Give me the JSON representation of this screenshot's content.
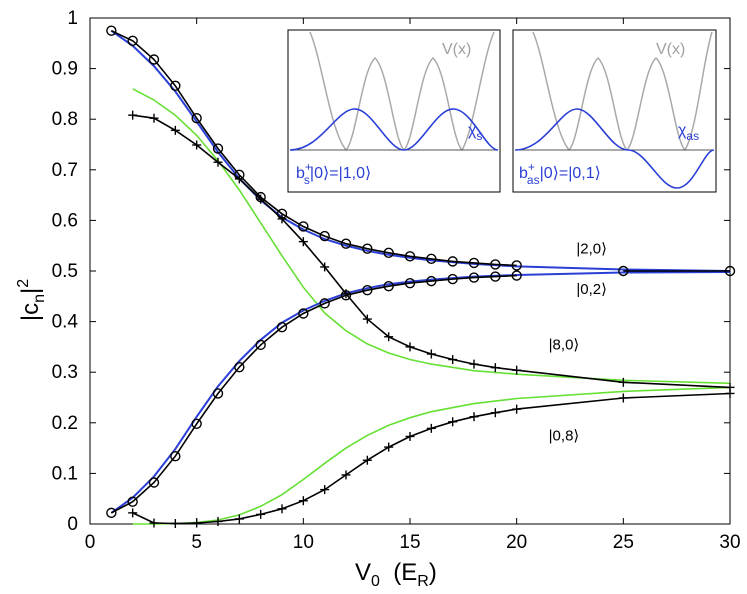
{
  "chart_data": {
    "type": "line",
    "xlabel": {
      "main": "V",
      "sub": "0",
      "units_open": "  (E",
      "units_sub": "R",
      "units_close": ")"
    },
    "ylabel": {
      "main": "|c",
      "sub": "n",
      "close": "|",
      "sup": "2"
    },
    "xlim": [
      0,
      30
    ],
    "ylim": [
      0,
      1
    ],
    "xticks": [
      "0",
      "5",
      "10",
      "15",
      "20",
      "25",
      "30"
    ],
    "yticks": [
      "0",
      "0.1",
      "0.2",
      "0.3",
      "0.4",
      "0.5",
      "0.6",
      "0.7",
      "0.8",
      "0.9",
      "1"
    ],
    "grid": false,
    "colors": {
      "black": "#000000",
      "blue": "#2a3fd6",
      "green": "#66e033",
      "gray": "#a9a9a9"
    },
    "series": [
      {
        "style": "black-circles",
        "x": [
          1,
          2,
          3,
          4,
          5,
          6,
          7,
          8,
          9,
          10,
          11,
          12,
          13,
          14,
          15,
          16,
          17,
          18,
          19,
          20
        ],
        "y": [
          0.975,
          0.955,
          0.918,
          0.866,
          0.802,
          0.742,
          0.69,
          0.646,
          0.613,
          0.588,
          0.569,
          0.554,
          0.544,
          0.536,
          0.529,
          0.524,
          0.519,
          0.516,
          0.513,
          0.511
        ]
      },
      {
        "style": "black-circles",
        "x": [
          1,
          2,
          3,
          4,
          5,
          6,
          7,
          8,
          9,
          10,
          11,
          12,
          13,
          14,
          15,
          16,
          17,
          18,
          19,
          20
        ],
        "y": [
          0.022,
          0.044,
          0.082,
          0.134,
          0.198,
          0.258,
          0.31,
          0.354,
          0.389,
          0.416,
          0.436,
          0.452,
          0.462,
          0.47,
          0.476,
          0.48,
          0.484,
          0.487,
          0.489,
          0.491
        ]
      },
      {
        "style": "black-circles",
        "x": [
          25,
          30
        ],
        "y": [
          0.5,
          0.5
        ]
      },
      {
        "style": "black-plus",
        "x": [
          2,
          3,
          4,
          5,
          6,
          7,
          8,
          9,
          10,
          11,
          12,
          13,
          14,
          15,
          16,
          17,
          18,
          19,
          20,
          25,
          30
        ],
        "y": [
          0.808,
          0.802,
          0.778,
          0.749,
          0.715,
          0.682,
          0.642,
          0.603,
          0.558,
          0.508,
          0.455,
          0.405,
          0.37,
          0.35,
          0.336,
          0.325,
          0.316,
          0.309,
          0.304,
          0.28,
          0.27
        ]
      },
      {
        "style": "black-plus",
        "x": [
          2,
          3,
          4,
          5,
          6,
          7,
          8,
          9,
          10,
          11,
          12,
          13,
          14,
          15,
          16,
          17,
          18,
          19,
          20,
          25,
          30
        ],
        "y": [
          0.022,
          0.002,
          0.001,
          0.002,
          0.005,
          0.01,
          0.019,
          0.03,
          0.046,
          0.068,
          0.097,
          0.126,
          0.152,
          0.173,
          0.189,
          0.202,
          0.212,
          0.22,
          0.227,
          0.249,
          0.258
        ]
      },
      {
        "style": "blue-line",
        "x": [
          1,
          2,
          3,
          4,
          5,
          6,
          7,
          8,
          9,
          10,
          11,
          12,
          13,
          14,
          15,
          16,
          18,
          20,
          25,
          30
        ],
        "y": [
          0.975,
          0.945,
          0.905,
          0.855,
          0.795,
          0.735,
          0.683,
          0.64,
          0.606,
          0.582,
          0.563,
          0.55,
          0.54,
          0.532,
          0.526,
          0.521,
          0.514,
          0.509,
          0.503,
          0.5
        ]
      },
      {
        "style": "blue-line",
        "x": [
          1,
          2,
          3,
          4,
          5,
          6,
          7,
          8,
          9,
          10,
          11,
          12,
          13,
          14,
          15,
          16,
          18,
          20,
          25,
          30
        ],
        "y": [
          0.022,
          0.052,
          0.094,
          0.148,
          0.212,
          0.272,
          0.322,
          0.364,
          0.398,
          0.422,
          0.441,
          0.456,
          0.466,
          0.474,
          0.479,
          0.483,
          0.489,
          0.492,
          0.497,
          0.498
        ]
      },
      {
        "style": "green-line",
        "x": [
          2,
          3,
          4,
          5,
          6,
          7,
          8,
          9,
          10,
          11,
          12,
          13,
          14,
          15,
          16,
          18,
          20,
          25,
          30
        ],
        "y": [
          0.86,
          0.838,
          0.808,
          0.768,
          0.718,
          0.66,
          0.595,
          0.53,
          0.468,
          0.417,
          0.382,
          0.356,
          0.338,
          0.325,
          0.316,
          0.303,
          0.296,
          0.284,
          0.278
        ]
      },
      {
        "style": "green-line",
        "x": [
          2,
          3,
          4,
          5,
          6,
          7,
          8,
          9,
          10,
          11,
          12,
          13,
          14,
          15,
          16,
          18,
          20,
          25,
          30
        ],
        "y": [
          0.0,
          0.0,
          0.001,
          0.003,
          0.008,
          0.018,
          0.035,
          0.058,
          0.088,
          0.12,
          0.15,
          0.175,
          0.195,
          0.21,
          0.222,
          0.238,
          0.248,
          0.262,
          0.27
        ]
      }
    ],
    "annotations": [
      {
        "text": "|2,0⟩",
        "x": 22.8,
        "y": 0.535
      },
      {
        "text": "|0,2⟩",
        "x": 22.8,
        "y": 0.455
      },
      {
        "text": "|8,0⟩",
        "x": 21.5,
        "y": 0.345
      },
      {
        "text": "|0,8⟩",
        "x": 21.5,
        "y": 0.165
      }
    ],
    "insets": [
      {
        "name": "symmetric",
        "potential_label": "V(x)",
        "mode_label": "χ",
        "mode_sub": "s",
        "formula": {
          "pre": "b",
          "sub": "s",
          "sup": "+",
          "post": "|0⟩=|1,0⟩"
        }
      },
      {
        "name": "antisymmetric",
        "potential_label": "V(x)",
        "mode_label": "χ",
        "mode_sub": "as",
        "formula": {
          "pre": "b",
          "sub": "as",
          "sup": "+",
          "post": "|0⟩=|0,1⟩"
        }
      }
    ]
  }
}
